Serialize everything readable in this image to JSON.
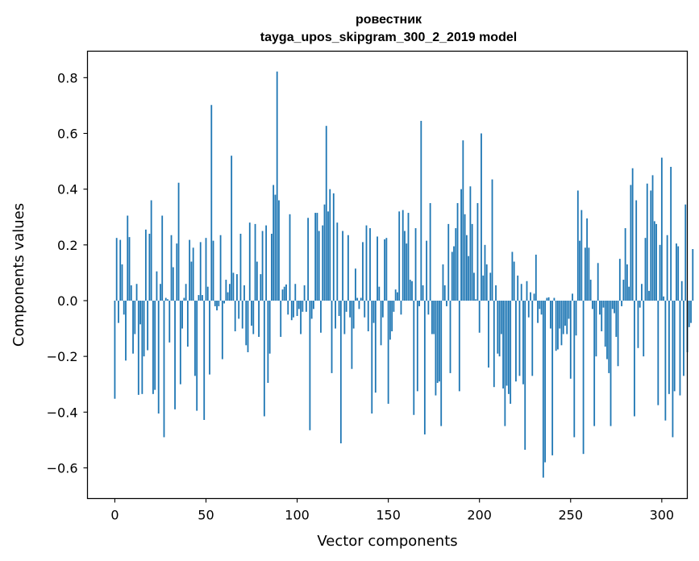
{
  "chart_data": {
    "type": "bar",
    "title": "ровестник",
    "subtitle": "tayga_upos_skipgram_300_2_2019 model",
    "xlabel": "Vector components",
    "ylabel": "Components values",
    "xlim": [
      -15,
      314
    ],
    "ylim": [
      -0.71,
      0.895
    ],
    "xticks": [
      0,
      50,
      100,
      150,
      200,
      250,
      300
    ],
    "xtick_labels": [
      "0",
      "50",
      "100",
      "150",
      "200",
      "250",
      "300"
    ],
    "yticks": [
      -0.6,
      -0.4,
      -0.2,
      0.0,
      0.2,
      0.4,
      0.6,
      0.8
    ],
    "ytick_labels": [
      "−0.6",
      "−0.4",
      "−0.2",
      "0.0",
      "0.2",
      "0.4",
      "0.6",
      "0.8"
    ],
    "bar_color": "#1f77b4",
    "grid": false,
    "values": [
      -0.352,
      0.225,
      -0.08,
      0.218,
      0.13,
      -0.05,
      -0.215,
      0.305,
      0.228,
      0.055,
      -0.19,
      -0.12,
      0.06,
      -0.338,
      -0.085,
      -0.335,
      -0.2,
      0.255,
      -0.178,
      0.24,
      0.36,
      -0.335,
      -0.32,
      0.105,
      -0.405,
      0.06,
      0.305,
      -0.49,
      0.01,
      0.005,
      -0.15,
      0.235,
      0.12,
      -0.39,
      0.205,
      0.423,
      -0.3,
      -0.1,
      0.01,
      0.06,
      -0.165,
      0.218,
      0.14,
      0.19,
      -0.27,
      -0.395,
      0.02,
      0.21,
      0.02,
      -0.428,
      0.225,
      0.05,
      -0.265,
      0.702,
      0.215,
      -0.02,
      -0.035,
      -0.02,
      0.235,
      -0.21,
      -0.01,
      0.075,
      0.03,
      0.06,
      0.52,
      0.1,
      -0.11,
      0.095,
      -0.065,
      0.24,
      -0.1,
      0.055,
      -0.16,
      -0.185,
      0.28,
      -0.09,
      -0.12,
      0.275,
      0.14,
      -0.13,
      0.095,
      0.25,
      -0.415,
      0.27,
      -0.295,
      -0.19,
      0.24,
      0.415,
      0.38,
      0.822,
      0.36,
      -0.13,
      0.04,
      0.05,
      0.058,
      -0.05,
      0.31,
      -0.07,
      -0.06,
      0.06,
      -0.055,
      -0.03,
      -0.12,
      -0.04,
      0.055,
      -0.04,
      0.297,
      -0.465,
      -0.065,
      -0.03,
      0.315,
      0.315,
      0.25,
      -0.115,
      0.27,
      0.345,
      0.627,
      0.32,
      0.4,
      -0.26,
      0.385,
      -0.1,
      0.28,
      -0.055,
      -0.512,
      0.25,
      -0.12,
      -0.04,
      0.235,
      -0.06,
      -0.245,
      -0.1,
      0.115,
      0.01,
      -0.03,
      0.01,
      0.21,
      -0.06,
      0.27,
      -0.11,
      0.26,
      -0.405,
      -0.08,
      -0.33,
      0.23,
      0.05,
      -0.16,
      -0.06,
      0.22,
      0.225,
      -0.37,
      -0.14,
      -0.11,
      -0.04,
      0.04,
      0.03,
      0.32,
      -0.05,
      0.325,
      0.25,
      0.205,
      0.315,
      0.075,
      0.07,
      -0.41,
      0.26,
      -0.325,
      -0.02,
      0.645,
      0.055,
      -0.48,
      0.215,
      -0.05,
      0.35,
      -0.12,
      -0.12,
      -0.34,
      -0.295,
      -0.29,
      -0.45,
      0.13,
      0.055,
      -0.02,
      0.275,
      -0.26,
      0.175,
      0.195,
      0.26,
      0.35,
      -0.325,
      0.4,
      0.575,
      0.31,
      0.235,
      0.16,
      0.41,
      0.275,
      0.1,
      0.005,
      0.35,
      -0.115,
      0.6,
      0.09,
      0.2,
      0.13,
      -0.24,
      0.1,
      0.435,
      -0.31,
      0.055,
      -0.19,
      -0.2,
      -0.12,
      -0.315,
      -0.45,
      -0.305,
      -0.335,
      -0.37,
      0.175,
      0.14,
      -0.29,
      0.09,
      -0.27,
      0.06,
      -0.3,
      -0.535,
      0.07,
      -0.06,
      0.03,
      -0.27,
      0.025,
      0.165,
      -0.08,
      -0.03,
      -0.05,
      -0.635,
      -0.58,
      0.01,
      0.012,
      -0.1,
      -0.555,
      0.01,
      -0.18,
      -0.175,
      -0.1,
      -0.16,
      -0.12,
      -0.09,
      -0.12,
      -0.065,
      -0.28,
      0.025,
      -0.49,
      -0.125,
      0.395,
      0.215,
      0.325,
      -0.55,
      0.19,
      0.295,
      0.19,
      0.075,
      -0.03,
      -0.45,
      -0.2,
      0.135,
      -0.05,
      -0.11,
      -0.025,
      -0.165,
      -0.21,
      -0.26,
      -0.45,
      -0.03,
      -0.045,
      -0.13,
      -0.235,
      0.15,
      -0.02,
      0.075,
      0.26,
      0.13,
      0.05,
      0.415,
      0.475,
      -0.415,
      0.36,
      -0.17,
      -0.025,
      0.06,
      -0.2,
      0.225,
      0.42,
      0.035,
      0.395,
      0.45,
      0.285,
      0.275,
      -0.375,
      0.2,
      0.513,
      0.015,
      -0.43,
      0.235,
      -0.335,
      0.48,
      -0.49,
      -0.325,
      0.205,
      0.195,
      -0.34,
      0.07,
      -0.27,
      0.345,
      -0.185,
      -0.095,
      -0.08,
      0.185
    ]
  }
}
